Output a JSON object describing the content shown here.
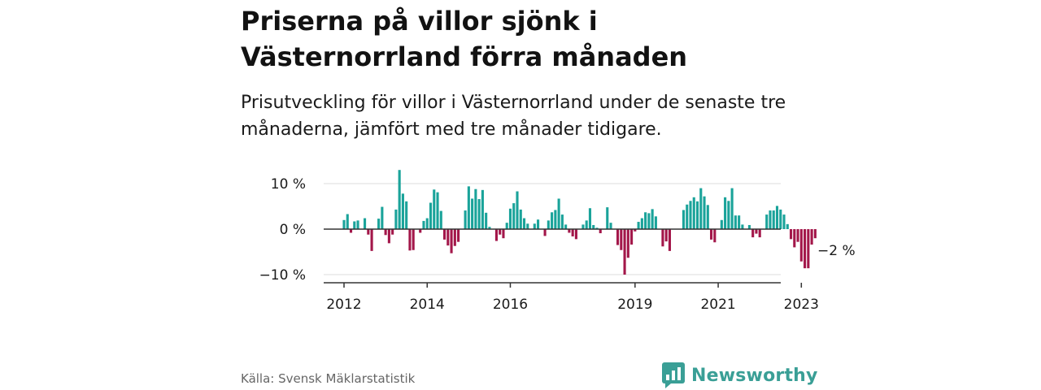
{
  "title": "Priserna på villor sjönk i Västernorrland förra månaden",
  "subtitle": "Prisutveckling för villor i Västernorrland under de senaste tre månaderna, jämfört med tre månader tidigare.",
  "source": "Källa: Svensk Mäklarstatistik",
  "brand": {
    "name": "Newsworthy",
    "logo_icon": "bar-chart-speech-bubble-icon"
  },
  "colors": {
    "positive": "#1aa39a",
    "negative": "#a3174a",
    "axis": "#333333",
    "grid": "#dddddd",
    "brand": "#3a9f96"
  },
  "chart_data": {
    "type": "bar",
    "start": "2012-01",
    "ylim": [
      -12,
      13
    ],
    "yticks": [
      {
        "value": 10,
        "label": "10 %"
      },
      {
        "value": 0,
        "label": "0 %"
      },
      {
        "value": -10,
        "label": "−10 %"
      }
    ],
    "xticks": [
      {
        "year": 2012,
        "label": "2012"
      },
      {
        "year": 2014,
        "label": "2014"
      },
      {
        "year": 2016,
        "label": "2016"
      },
      {
        "year": 2019,
        "label": "2019"
      },
      {
        "year": 2021,
        "label": "2021"
      },
      {
        "year": 2023,
        "label": "2023"
      }
    ],
    "last_value_label": "−2 %",
    "values": [
      2.0,
      3.3,
      -0.8,
      1.7,
      1.9,
      0,
      2.4,
      -1.2,
      -4.8,
      0,
      2.3,
      4.9,
      -1.3,
      -3.1,
      -1.2,
      4.3,
      13.0,
      7.8,
      6.1,
      -4.7,
      -4.6,
      0,
      -0.8,
      1.8,
      2.4,
      5.8,
      8.7,
      8.1,
      4.0,
      -2.3,
      -3.6,
      -5.3,
      -3.7,
      -2.8,
      0,
      4.1,
      9.4,
      6.7,
      8.8,
      6.6,
      8.6,
      3.6,
      0.5,
      0,
      -2.6,
      -1.2,
      -2.0,
      1.4,
      4.5,
      5.7,
      8.3,
      4.3,
      2.4,
      1.2,
      0,
      1.2,
      2.1,
      0,
      -1.5,
      1.9,
      3.7,
      4.2,
      6.7,
      3.2,
      1.0,
      -0.8,
      -1.6,
      -2.2,
      0,
      1.0,
      1.9,
      4.6,
      0.9,
      0.3,
      -0.9,
      0,
      4.8,
      1.4,
      0,
      -3.5,
      -4.6,
      -10.0,
      -6.3,
      -3.4,
      -0.5,
      1.6,
      2.4,
      3.7,
      3.5,
      4.4,
      2.8,
      0,
      -3.8,
      -2.7,
      -4.8,
      0,
      0,
      0,
      4.2,
      5.4,
      6.2,
      7.0,
      6.1,
      9.0,
      7.2,
      5.3,
      -2.3,
      -2.9,
      0,
      2.0,
      7.0,
      6.2,
      9.0,
      3.0,
      3.0,
      1.0,
      0,
      0.9,
      -1.8,
      -1.0,
      -1.8,
      0,
      3.2,
      4.1,
      4.1,
      5.1,
      4.3,
      3.2,
      1.1,
      -2.2,
      -4.0,
      -2.8,
      -7.1,
      -8.6,
      -8.6,
      -3.4,
      -2.0
    ]
  }
}
